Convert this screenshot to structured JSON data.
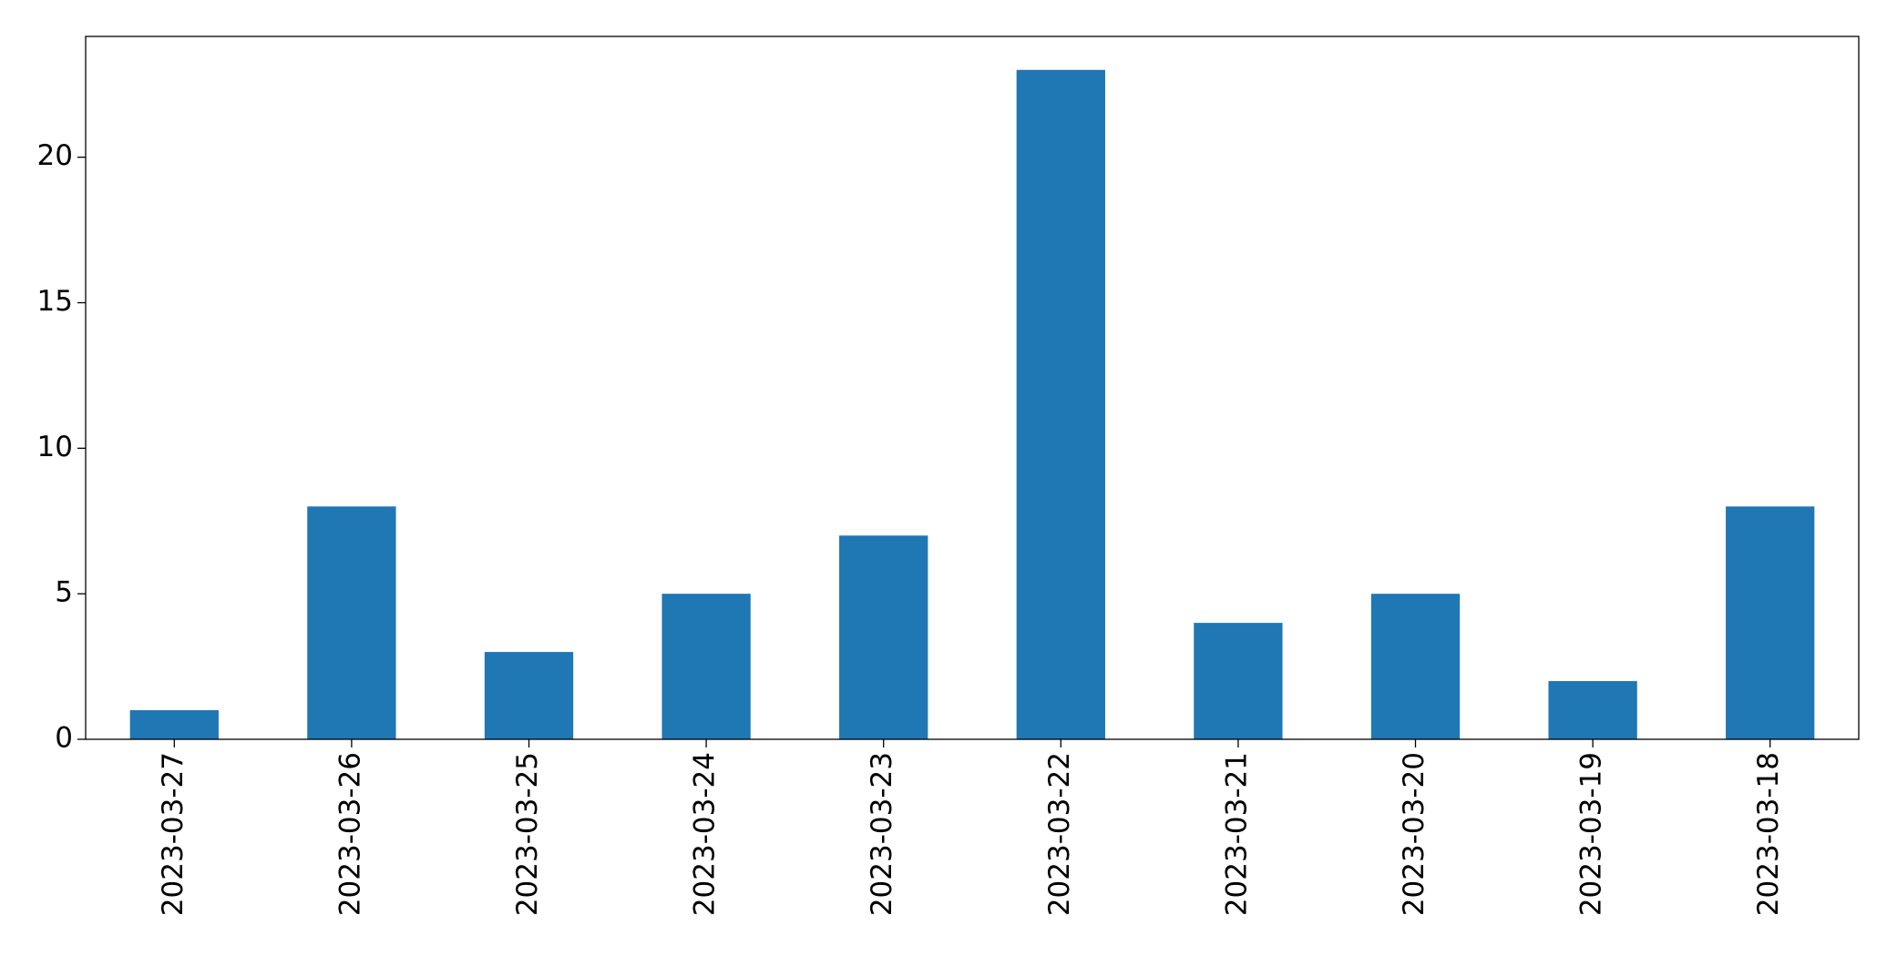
{
  "chart_data": {
    "type": "bar",
    "categories": [
      "2023-03-27",
      "2023-03-26",
      "2023-03-25",
      "2023-03-24",
      "2023-03-23",
      "2023-03-22",
      "2023-03-21",
      "2023-03-20",
      "2023-03-19",
      "2023-03-18"
    ],
    "values": [
      1,
      8,
      3,
      5,
      7,
      23,
      4,
      5,
      2,
      8
    ],
    "color": "#1f77b4",
    "ylim": [
      0,
      24.15
    ],
    "yticks": [
      0,
      5,
      10,
      15,
      20
    ],
    "grid": false
  }
}
